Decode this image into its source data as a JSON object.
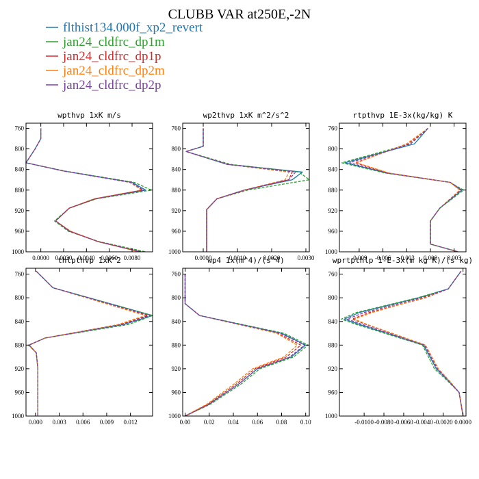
{
  "figure": {
    "title": "CLUBB VAR at250E,-2N"
  },
  "colors": {
    "flthist134.000f_xp2_revert": "#1f77b4",
    "jan24_cldfrc_dp1m": "#2ca02c",
    "jan24_cldfrc_dp1p": "#d62728",
    "jan24_cldfrc_dp2m": "#ff7f0e",
    "jan24_cldfrc_dp2p": "#7b3fa0"
  },
  "legend": [
    {
      "name": "flthist134.000f_xp2_revert",
      "color": "#1f77b4"
    },
    {
      "name": "jan24_cldfrc_dp1m",
      "color": "#2ca02c"
    },
    {
      "name": "jan24_cldfrc_dp1p",
      "color": "#d62728"
    },
    {
      "name": "jan24_cldfrc_dp2m",
      "color": "#ff7f0e"
    },
    {
      "name": "jan24_cldfrc_dp2p",
      "color": "#7b3fa0"
    }
  ],
  "chart_data": [
    {
      "type": "line",
      "title": "wpthvp  1xK m/s",
      "y_axis": {
        "ticks": [
          760,
          800,
          840,
          880,
          920,
          960,
          1000
        ],
        "range": [
          750,
          1000
        ],
        "inverted": true
      },
      "x_axis": {
        "ticks": [
          0.0,
          0.002,
          0.004,
          0.006,
          0.008
        ],
        "tick_labels": [
          "0.0000",
          "0.0020",
          "0.0040",
          "0.0060",
          "0.0080"
        ],
        "range": [
          -0.0013,
          0.0098
        ]
      },
      "y": [
        760,
        780,
        800,
        827,
        843,
        865,
        880,
        897,
        915,
        940,
        960,
        980,
        1000
      ],
      "series": [
        {
          "name": "flthist134.000f_xp2_revert",
          "values": [
            0.0,
            0.0,
            -0.0005,
            -0.0013,
            0.002,
            0.008,
            0.0092,
            0.0048,
            0.0025,
            0.0013,
            0.0025,
            0.005,
            0.0088
          ]
        },
        {
          "name": "jan24_cldfrc_dp1m",
          "values": [
            0.0,
            0.0,
            -0.0005,
            -0.0013,
            0.0021,
            0.0082,
            0.0097,
            0.0049,
            0.0025,
            0.0012,
            0.0024,
            0.0051,
            0.0092
          ]
        },
        {
          "name": "jan24_cldfrc_dp1p",
          "values": [
            0.0,
            0.0,
            -0.0005,
            -0.0013,
            0.002,
            0.0078,
            0.0089,
            0.0047,
            0.0025,
            0.0013,
            0.0026,
            0.005,
            0.0087
          ]
        },
        {
          "name": "jan24_cldfrc_dp2m",
          "values": [
            0.0,
            0.0,
            -0.0005,
            -0.0013,
            0.002,
            0.0079,
            0.0088,
            0.0047,
            0.0025,
            0.0013,
            0.0026,
            0.005,
            0.0086
          ]
        },
        {
          "name": "jan24_cldfrc_dp2p",
          "values": [
            0.0,
            0.0,
            -0.0005,
            -0.0013,
            0.002,
            0.0079,
            0.009,
            0.0048,
            0.0025,
            0.0013,
            0.0025,
            0.005,
            0.0088
          ]
        }
      ]
    },
    {
      "type": "line",
      "title": "wp2thvp  1xK m^2/s^2",
      "y_axis": {
        "ticks": [
          760,
          800,
          840,
          880,
          920,
          960,
          1000
        ],
        "range": [
          750,
          1000
        ],
        "inverted": true
      },
      "x_axis": {
        "ticks": [
          0.0,
          0.001,
          0.002,
          0.003
        ],
        "tick_labels": [
          "0.0000",
          "0.0010",
          "0.0020",
          "0.0030"
        ],
        "range": [
          -0.0006,
          0.0031
        ]
      },
      "y": [
        760,
        795,
        805,
        830,
        845,
        860,
        880,
        897,
        918,
        940,
        960,
        980,
        1000
      ],
      "series": [
        {
          "name": "flthist134.000f_xp2_revert",
          "values": [
            0.0,
            0.0,
            -0.0005,
            0.0007,
            0.0029,
            0.0026,
            0.0012,
            0.0004,
            0.0001,
            0.0001,
            0.0001,
            0.0001,
            0.0001
          ]
        },
        {
          "name": "jan24_cldfrc_dp1m",
          "values": [
            0.0,
            0.0,
            -0.0005,
            0.0008,
            0.0028,
            0.0031,
            0.0013,
            0.0004,
            0.0001,
            0.0001,
            0.0001,
            0.0001,
            0.0001
          ]
        },
        {
          "name": "jan24_cldfrc_dp1p",
          "values": [
            0.0,
            0.0,
            -0.0005,
            0.0007,
            0.0026,
            0.0025,
            0.0012,
            0.0004,
            0.0001,
            0.0001,
            0.0001,
            0.0001,
            0.0001
          ]
        },
        {
          "name": "jan24_cldfrc_dp2m",
          "values": [
            0.0,
            0.0,
            -0.0005,
            0.0007,
            0.0025,
            0.0024,
            0.0012,
            0.0004,
            0.0001,
            0.0001,
            0.0001,
            0.0001,
            0.0001
          ]
        },
        {
          "name": "jan24_cldfrc_dp2p",
          "values": [
            0.0,
            0.0,
            -0.0005,
            0.0007,
            0.0027,
            0.0025,
            0.0012,
            0.0004,
            0.0001,
            0.0001,
            0.0001,
            0.0001,
            0.0001
          ]
        }
      ]
    },
    {
      "type": "line",
      "title": "rtpthvp  1E-3x(kg/kg) K",
      "y_axis": {
        "ticks": [
          760,
          800,
          840,
          880,
          920,
          960,
          1000
        ],
        "range": [
          750,
          1000
        ],
        "inverted": true
      },
      "x_axis": {
        "ticks": [
          -0.009,
          -0.006,
          -0.003,
          0.0,
          0.003
        ],
        "tick_labels": [
          "-0.009",
          "-0.006",
          "-0.003",
          "0.000",
          "0.003"
        ],
        "range": [
          -0.0115,
          0.0045
        ]
      },
      "y": [
        760,
        790,
        827,
        847,
        865,
        880,
        915,
        940,
        960,
        985,
        1000
      ],
      "series": [
        {
          "name": "flthist134.000f_xp2_revert",
          "values": [
            -0.0003,
            -0.002,
            -0.0108,
            -0.0055,
            0.0025,
            0.004,
            0.0012,
            0.0,
            0.0,
            0.0,
            0.0035
          ]
        },
        {
          "name": "jan24_cldfrc_dp1m",
          "values": [
            -0.0003,
            -0.0025,
            -0.0112,
            -0.0057,
            0.0025,
            0.0042,
            0.0012,
            0.0,
            0.0,
            0.0,
            0.0035
          ]
        },
        {
          "name": "jan24_cldfrc_dp1p",
          "values": [
            -0.0003,
            -0.0028,
            -0.0095,
            -0.0053,
            0.0025,
            0.0038,
            0.0012,
            0.0,
            0.0,
            0.0,
            0.0035
          ]
        },
        {
          "name": "jan24_cldfrc_dp2m",
          "values": [
            -0.0003,
            -0.003,
            -0.0093,
            -0.0052,
            0.0025,
            0.0037,
            0.0012,
            0.0,
            0.0,
            0.0,
            0.0035
          ]
        },
        {
          "name": "jan24_cldfrc_dp2p",
          "values": [
            -0.0003,
            -0.0025,
            -0.0102,
            -0.0054,
            0.0025,
            0.0039,
            0.0012,
            0.0,
            0.0,
            0.0,
            0.0035
          ]
        }
      ]
    },
    {
      "type": "line",
      "title": "thlpthvp  1xK^2",
      "y_axis": {
        "ticks": [
          760,
          800,
          840,
          880,
          920,
          960,
          1000
        ],
        "range": [
          750,
          1000
        ],
        "inverted": true
      },
      "x_axis": {
        "ticks": [
          0.0,
          0.003,
          0.006,
          0.009,
          0.012
        ],
        "tick_labels": [
          "0.000",
          "0.003",
          "0.006",
          "0.009",
          "0.012"
        ],
        "range": [
          -0.0012,
          0.0148
        ]
      },
      "y": [
        755,
        783,
        830,
        845,
        868,
        880,
        893,
        920,
        960,
        1000
      ],
      "series": [
        {
          "name": "flthist134.000f_xp2_revert",
          "values": [
            0.0001,
            0.0022,
            0.0148,
            0.0112,
            0.0012,
            -0.0008,
            0.0001,
            0.0003,
            0.0003,
            0.0003
          ]
        },
        {
          "name": "jan24_cldfrc_dp1m",
          "values": [
            0.0001,
            0.0022,
            0.0148,
            0.0118,
            0.0012,
            -0.0009,
            0.0001,
            0.0003,
            0.0003,
            0.0003
          ]
        },
        {
          "name": "jan24_cldfrc_dp1p",
          "values": [
            0.0001,
            0.0022,
            0.0142,
            0.0108,
            0.0012,
            -0.0008,
            0.0001,
            0.0003,
            0.0003,
            0.0003
          ]
        },
        {
          "name": "jan24_cldfrc_dp2m",
          "values": [
            0.0001,
            0.0022,
            0.0139,
            0.0105,
            0.0012,
            -0.0008,
            0.0001,
            0.0003,
            0.0003,
            0.0003
          ]
        },
        {
          "name": "jan24_cldfrc_dp2p",
          "values": [
            0.0001,
            0.0022,
            0.0145,
            0.011,
            0.0012,
            -0.0008,
            0.0001,
            0.0003,
            0.0003,
            0.0003
          ]
        }
      ]
    },
    {
      "type": "line",
      "title": "wp4  1x(m^4)/(s^4)",
      "y_axis": {
        "ticks": [
          760,
          800,
          840,
          880,
          920,
          960,
          1000
        ],
        "range": [
          750,
          1000
        ],
        "inverted": true
      },
      "x_axis": {
        "ticks": [
          0.0,
          0.02,
          0.04,
          0.06,
          0.08,
          0.1
        ],
        "tick_labels": [
          "0.00",
          "0.02",
          "0.04",
          "0.06",
          "0.08",
          "0.10"
        ],
        "range": [
          -0.002,
          0.103
        ]
      },
      "y": [
        760,
        785,
        810,
        830,
        860,
        880,
        900,
        920,
        945,
        980,
        1000
      ],
      "series": [
        {
          "name": "flthist134.000f_xp2_revert",
          "values": [
            0.0,
            0.0,
            0.0,
            0.012,
            0.08,
            0.1,
            0.088,
            0.06,
            0.045,
            0.02,
            0.0
          ]
        },
        {
          "name": "jan24_cldfrc_dp1m",
          "values": [
            0.0,
            0.0,
            0.0,
            0.012,
            0.082,
            0.102,
            0.09,
            0.062,
            0.047,
            0.021,
            0.0
          ]
        },
        {
          "name": "jan24_cldfrc_dp1p",
          "values": [
            0.0,
            0.0,
            0.0,
            0.012,
            0.077,
            0.096,
            0.084,
            0.058,
            0.043,
            0.019,
            0.0
          ]
        },
        {
          "name": "jan24_cldfrc_dp2m",
          "values": [
            0.0,
            0.0,
            0.0,
            0.012,
            0.076,
            0.093,
            0.082,
            0.056,
            0.041,
            0.018,
            0.0
          ]
        },
        {
          "name": "jan24_cldfrc_dp2p",
          "values": [
            0.0,
            0.0,
            0.0,
            0.012,
            0.079,
            0.099,
            0.087,
            0.06,
            0.045,
            0.02,
            0.0
          ]
        }
      ]
    },
    {
      "type": "line",
      "title": "wprtpthlp  1-E-3x(m kg K)/(s kg)",
      "y_axis": {
        "ticks": [
          760,
          800,
          840,
          880,
          920,
          960,
          1000
        ],
        "range": [
          750,
          1000
        ],
        "inverted": true
      },
      "x_axis": {
        "ticks": [
          -0.01,
          -0.008,
          -0.006,
          -0.004,
          -0.002,
          0.0
        ],
        "tick_labels": [
          "-0.0100",
          "-0.0080",
          "-0.0060",
          "-0.0040",
          "-0.0020",
          "0.0000"
        ],
        "range": [
          -0.0125,
          0.0003
        ]
      },
      "y": [
        755,
        785,
        800,
        825,
        836,
        845,
        880,
        920,
        940,
        960,
        1000
      ],
      "series": [
        {
          "name": "flthist134.000f_xp2_revert",
          "values": [
            -0.0002,
            -0.0015,
            -0.0045,
            -0.0105,
            -0.012,
            -0.0105,
            -0.004,
            -0.0027,
            -0.0015,
            -0.0004,
            0.0
          ]
        },
        {
          "name": "jan24_cldfrc_dp1m",
          "values": [
            -0.0002,
            -0.0015,
            -0.0046,
            -0.0108,
            -0.0123,
            -0.0108,
            -0.0041,
            -0.0029,
            -0.0016,
            -0.0004,
            0.0
          ]
        },
        {
          "name": "jan24_cldfrc_dp1p",
          "values": [
            -0.0002,
            -0.0015,
            -0.0038,
            -0.0095,
            -0.0112,
            -0.0098,
            -0.0038,
            -0.0025,
            -0.0014,
            -0.0004,
            0.0
          ]
        },
        {
          "name": "jan24_cldfrc_dp2m",
          "values": [
            -0.0002,
            -0.0015,
            -0.004,
            -0.0092,
            -0.011,
            -0.0097,
            -0.0038,
            -0.0025,
            -0.0014,
            -0.0004,
            0.0
          ]
        },
        {
          "name": "jan24_cldfrc_dp2p",
          "values": [
            -0.0002,
            -0.0015,
            -0.0042,
            -0.01,
            -0.0117,
            -0.0102,
            -0.0039,
            -0.0026,
            -0.0015,
            -0.0004,
            0.0
          ]
        }
      ]
    }
  ]
}
